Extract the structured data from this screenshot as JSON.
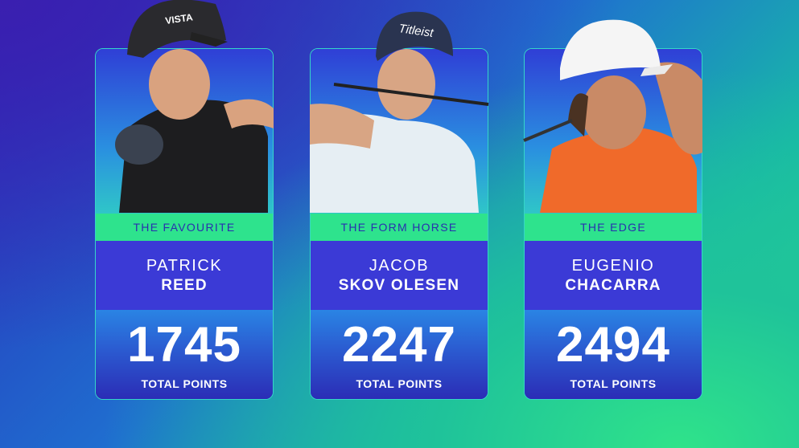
{
  "cards": [
    {
      "tag": "THE FAVOURITE",
      "first_name": "PATRICK",
      "last_name": "REED",
      "points": 1745,
      "points_label": "TOTAL POINTS"
    },
    {
      "tag": "THE FORM HORSE",
      "first_name": "JACOB",
      "last_name": "SKOV OLESEN",
      "points": 2247,
      "points_label": "TOTAL POINTS"
    },
    {
      "tag": "THE EDGE",
      "first_name": "EUGENIO",
      "last_name": "CHACARRA",
      "points": 2494,
      "points_label": "TOTAL POINTS"
    }
  ]
}
